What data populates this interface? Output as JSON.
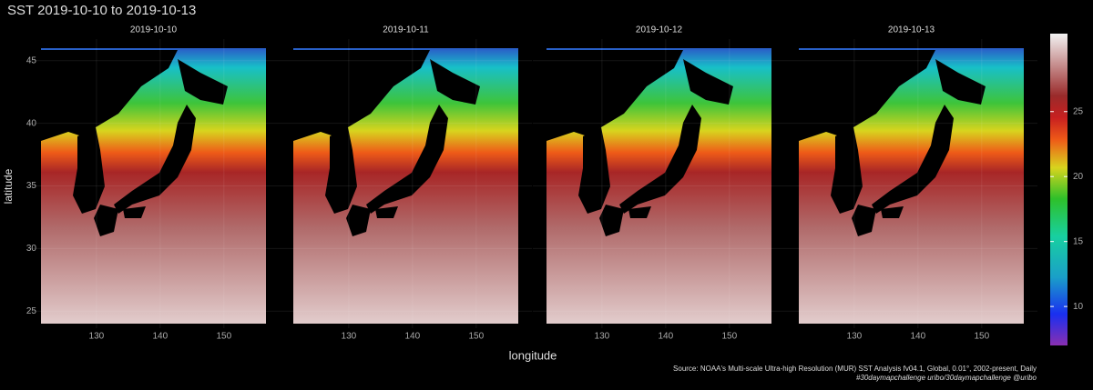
{
  "chart_data": {
    "type": "map",
    "title": "SST 2019-10-10 to 2019-10-13",
    "panels": [
      "2019-10-10",
      "2019-10-11",
      "2019-10-12",
      "2019-10-13"
    ],
    "xlabel": "longitude",
    "ylabel": "latitude",
    "xlim": [
      121.3,
      156.6
    ],
    "ylim": [
      24,
      46
    ],
    "xticks": [
      130,
      140,
      150
    ],
    "yticks": [
      25,
      30,
      35,
      40,
      45
    ],
    "grid": true,
    "colorbar": {
      "lim": [
        7,
        31
      ],
      "ticks": [
        10,
        15,
        20,
        25
      ]
    },
    "source": [
      "Source: NOAA's Multi-scale Ultra-high Resolution (MUR) SST Analysis fv04.1, Global, 0.01°, 2002-present, Daily",
      "#30daymapchallenge  uribo/30daymapchallenge  @uribo"
    ]
  }
}
